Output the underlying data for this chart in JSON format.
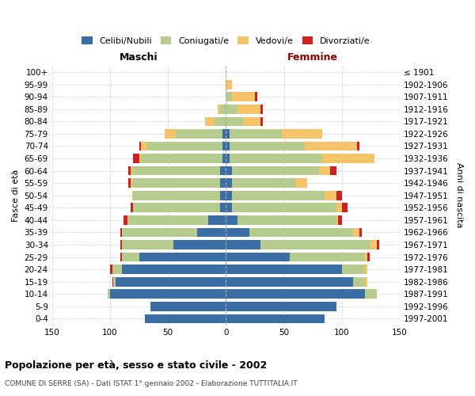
{
  "age_groups": [
    "0-4",
    "5-9",
    "10-14",
    "15-19",
    "20-24",
    "25-29",
    "30-34",
    "35-39",
    "40-44",
    "45-49",
    "50-54",
    "55-59",
    "60-64",
    "65-69",
    "70-74",
    "75-79",
    "80-84",
    "85-89",
    "90-94",
    "95-99",
    "100+"
  ],
  "birth_years": [
    "1997-2001",
    "1992-1996",
    "1987-1991",
    "1982-1986",
    "1977-1981",
    "1972-1976",
    "1967-1971",
    "1962-1966",
    "1957-1961",
    "1952-1956",
    "1947-1951",
    "1942-1946",
    "1937-1941",
    "1932-1936",
    "1927-1931",
    "1922-1926",
    "1917-1921",
    "1912-1916",
    "1907-1911",
    "1902-1906",
    "≤ 1901"
  ],
  "maschi": {
    "celibi": [
      70,
      65,
      100,
      95,
      90,
      75,
      45,
      25,
      15,
      5,
      5,
      5,
      5,
      3,
      3,
      3,
      0,
      0,
      0,
      0,
      0
    ],
    "coniugati": [
      0,
      0,
      2,
      2,
      8,
      15,
      45,
      65,
      70,
      75,
      75,
      75,
      75,
      70,
      65,
      40,
      10,
      5,
      0,
      0,
      0
    ],
    "vedovi": [
      0,
      0,
      0,
      0,
      0,
      0,
      0,
      0,
      0,
      0,
      1,
      2,
      2,
      2,
      5,
      10,
      8,
      2,
      0,
      0,
      0
    ],
    "divorziati": [
      0,
      0,
      0,
      1,
      2,
      1,
      1,
      1,
      3,
      2,
      0,
      2,
      2,
      5,
      2,
      0,
      0,
      0,
      0,
      0,
      0
    ]
  },
  "femmine": {
    "nubili": [
      85,
      95,
      120,
      110,
      100,
      55,
      30,
      20,
      10,
      5,
      5,
      5,
      5,
      3,
      3,
      3,
      0,
      0,
      0,
      0,
      0
    ],
    "coniugate": [
      0,
      0,
      10,
      10,
      20,
      65,
      95,
      90,
      85,
      90,
      80,
      55,
      75,
      80,
      65,
      45,
      15,
      10,
      5,
      0,
      0
    ],
    "vedove": [
      0,
      0,
      0,
      2,
      2,
      2,
      5,
      5,
      2,
      5,
      10,
      10,
      10,
      45,
      45,
      35,
      15,
      20,
      20,
      5,
      0
    ],
    "divorziate": [
      0,
      0,
      0,
      0,
      0,
      2,
      2,
      2,
      3,
      5,
      5,
      0,
      5,
      0,
      2,
      0,
      2,
      2,
      2,
      0,
      0
    ]
  },
  "colors": {
    "celibi_nubili": "#3a6ea5",
    "coniugati": "#b5cc8e",
    "vedovi": "#f5c36a",
    "divorziati": "#cc2222"
  },
  "xlim": 150,
  "title": "Popolazione per età, sesso e stato civile - 2002",
  "subtitle": "COMUNE DI SERRE (SA) - Dati ISTAT 1° gennaio 2002 - Elaborazione TUTTITALIA.IT",
  "ylabel_left": "Fasce di età",
  "ylabel_right": "Anni di nascita",
  "xlabel_maschi": "Maschi",
  "xlabel_femmine": "Femmine",
  "background_color": "#ffffff"
}
